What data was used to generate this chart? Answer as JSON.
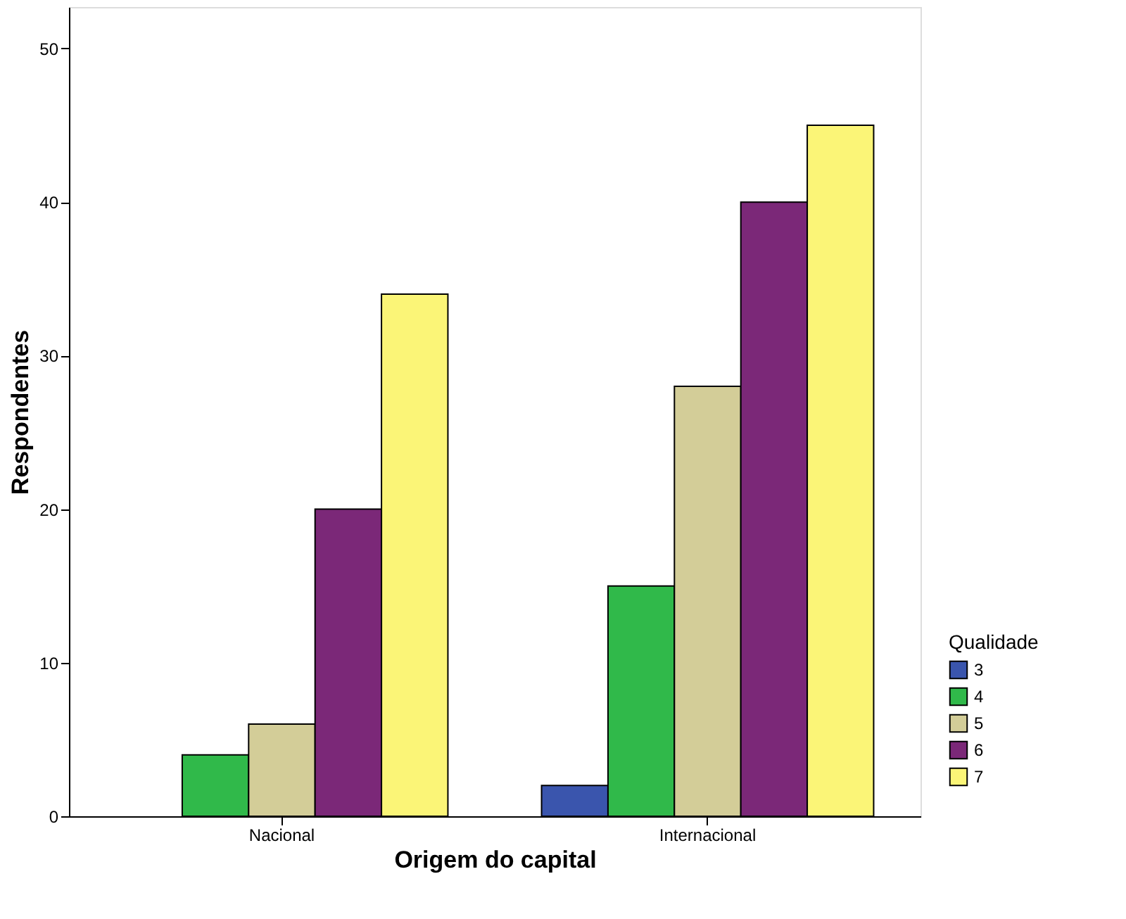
{
  "chart_data": {
    "type": "bar",
    "xlabel": "Origem do capital",
    "ylabel": "Respondentes",
    "legend_title": "Qualidade",
    "legend": "bottom right",
    "categories": [
      "Nacional",
      "Internacional"
    ],
    "ylim": [
      0,
      52.7
    ],
    "yticks": [
      0,
      10,
      20,
      30,
      40,
      50
    ],
    "grid": false,
    "series": [
      {
        "name": "3",
        "color": "#3a55ad",
        "values": [
          null,
          2
        ]
      },
      {
        "name": "4",
        "color": "#30b94a",
        "values": [
          4,
          15
        ]
      },
      {
        "name": "5",
        "color": "#d3cd98",
        "values": [
          6,
          28
        ]
      },
      {
        "name": "6",
        "color": "#7b2878",
        "values": [
          20,
          40
        ]
      },
      {
        "name": "7",
        "color": "#fbf577",
        "values": [
          34,
          45
        ]
      }
    ]
  }
}
